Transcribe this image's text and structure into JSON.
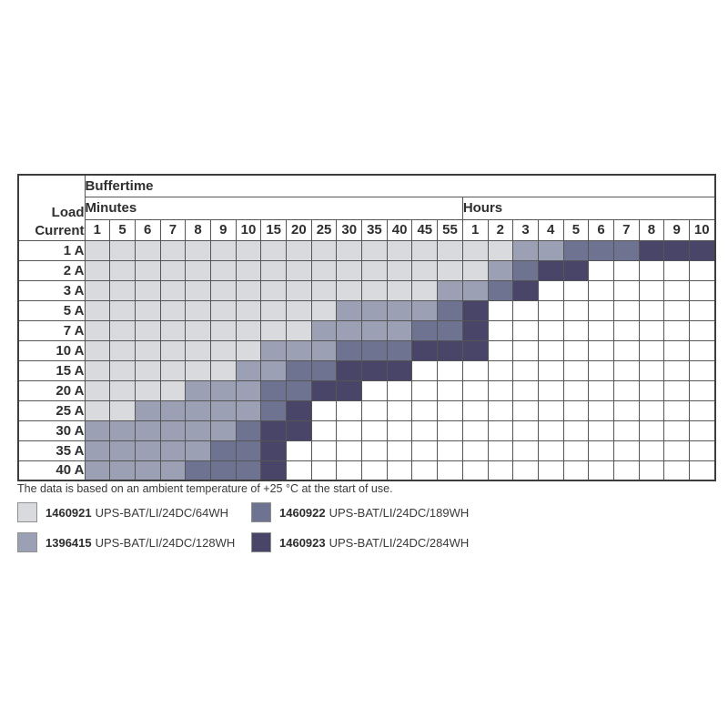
{
  "chart_data": {
    "type": "heatmap",
    "title": "Buffertime",
    "y_axis_label_line1": "Load",
    "y_axis_label_line2": "Current",
    "column_groups": [
      {
        "label": "Minutes",
        "ticks": [
          "1",
          "5",
          "6",
          "7",
          "8",
          "9",
          "10",
          "15",
          "20",
          "25",
          "30",
          "35",
          "40",
          "45",
          "55"
        ]
      },
      {
        "label": "Hours",
        "ticks": [
          "1",
          "2",
          "3",
          "4",
          "5",
          "6",
          "7",
          "8",
          "9",
          "10"
        ]
      }
    ],
    "cell_value_meaning": "0 = empty (no buffer time shown); 1-4 = battery model per legend index",
    "shade_colors": {
      "0": "#ffffff",
      "1": "#d9dade",
      "2": "#9ba0b5",
      "3": "#6d7391",
      "4": "#484569"
    },
    "rows": [
      {
        "label": "1 A",
        "cells": [
          1,
          1,
          1,
          1,
          1,
          1,
          1,
          1,
          1,
          1,
          1,
          1,
          1,
          1,
          1,
          1,
          1,
          2,
          2,
          3,
          3,
          3,
          4,
          4,
          4
        ]
      },
      {
        "label": "2 A",
        "cells": [
          1,
          1,
          1,
          1,
          1,
          1,
          1,
          1,
          1,
          1,
          1,
          1,
          1,
          1,
          1,
          1,
          2,
          3,
          4,
          4,
          0,
          0,
          0,
          0,
          0
        ]
      },
      {
        "label": "3 A",
        "cells": [
          1,
          1,
          1,
          1,
          1,
          1,
          1,
          1,
          1,
          1,
          1,
          1,
          1,
          1,
          2,
          2,
          3,
          4,
          0,
          0,
          0,
          0,
          0,
          0,
          0
        ]
      },
      {
        "label": "5 A",
        "cells": [
          1,
          1,
          1,
          1,
          1,
          1,
          1,
          1,
          1,
          1,
          2,
          2,
          2,
          2,
          3,
          4,
          0,
          0,
          0,
          0,
          0,
          0,
          0,
          0,
          0
        ]
      },
      {
        "label": "7 A",
        "cells": [
          1,
          1,
          1,
          1,
          1,
          1,
          1,
          1,
          1,
          2,
          2,
          2,
          2,
          3,
          3,
          4,
          0,
          0,
          0,
          0,
          0,
          0,
          0,
          0,
          0
        ]
      },
      {
        "label": "10 A",
        "cells": [
          1,
          1,
          1,
          1,
          1,
          1,
          1,
          2,
          2,
          2,
          3,
          3,
          3,
          4,
          4,
          4,
          0,
          0,
          0,
          0,
          0,
          0,
          0,
          0,
          0
        ]
      },
      {
        "label": "15 A",
        "cells": [
          1,
          1,
          1,
          1,
          1,
          1,
          2,
          2,
          3,
          3,
          4,
          4,
          4,
          0,
          0,
          0,
          0,
          0,
          0,
          0,
          0,
          0,
          0,
          0,
          0
        ]
      },
      {
        "label": "20 A",
        "cells": [
          1,
          1,
          1,
          1,
          2,
          2,
          2,
          3,
          3,
          4,
          4,
          0,
          0,
          0,
          0,
          0,
          0,
          0,
          0,
          0,
          0,
          0,
          0,
          0,
          0
        ]
      },
      {
        "label": "25 A",
        "cells": [
          1,
          1,
          2,
          2,
          2,
          2,
          2,
          3,
          4,
          0,
          0,
          0,
          0,
          0,
          0,
          0,
          0,
          0,
          0,
          0,
          0,
          0,
          0,
          0,
          0
        ]
      },
      {
        "label": "30 A",
        "cells": [
          2,
          2,
          2,
          2,
          2,
          2,
          3,
          4,
          4,
          0,
          0,
          0,
          0,
          0,
          0,
          0,
          0,
          0,
          0,
          0,
          0,
          0,
          0,
          0,
          0
        ]
      },
      {
        "label": "35 A",
        "cells": [
          2,
          2,
          2,
          2,
          2,
          3,
          3,
          4,
          0,
          0,
          0,
          0,
          0,
          0,
          0,
          0,
          0,
          0,
          0,
          0,
          0,
          0,
          0,
          0,
          0
        ]
      },
      {
        "label": "40 A",
        "cells": [
          2,
          2,
          2,
          2,
          3,
          3,
          3,
          4,
          0,
          0,
          0,
          0,
          0,
          0,
          0,
          0,
          0,
          0,
          0,
          0,
          0,
          0,
          0,
          0,
          0
        ]
      }
    ]
  },
  "footnote": "The data is based on an ambient temperature of +25 °C at the start of use.",
  "legend": [
    {
      "part_number": "1460921",
      "description": "UPS-BAT/LI/24DC/64WH",
      "shade": 1,
      "color": "#d9dade"
    },
    {
      "part_number": "1396415",
      "description": "UPS-BAT/LI/24DC/128WH",
      "shade": 2,
      "color": "#9ba0b5"
    },
    {
      "part_number": "1460922",
      "description": "UPS-BAT/LI/24DC/189WH",
      "shade": 3,
      "color": "#6d7391"
    },
    {
      "part_number": "1460923",
      "description": "UPS-BAT/LI/24DC/284WH",
      "shade": 4,
      "color": "#484569"
    }
  ]
}
